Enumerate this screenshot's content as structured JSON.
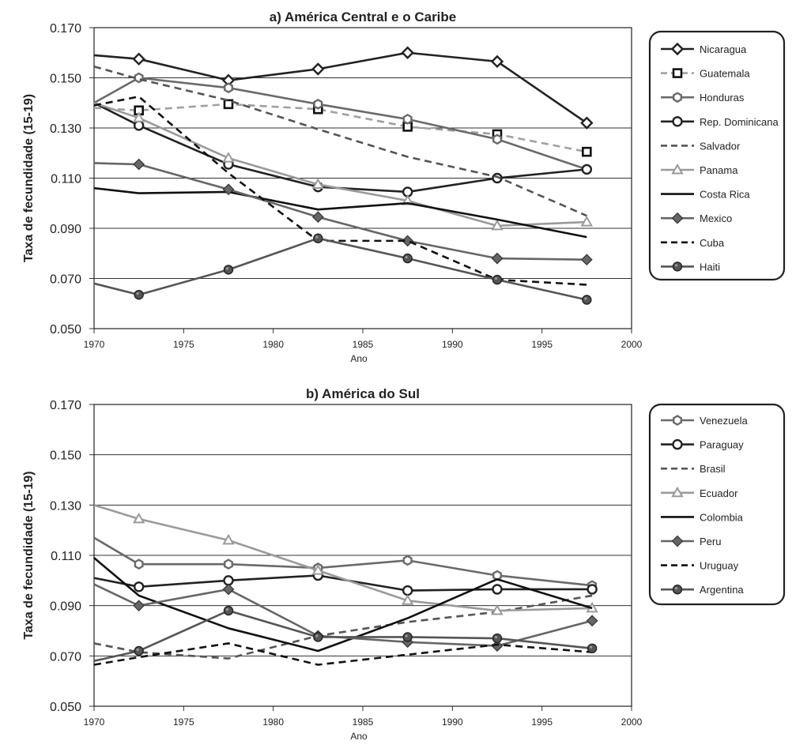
{
  "chart_data": [
    {
      "type": "line",
      "title": "a) América Central e o Caribe",
      "xlabel": "Ano",
      "ylabel": "Taxa de fecundidade (15-19)",
      "xlim": [
        1970,
        2000
      ],
      "ylim": [
        0.05,
        0.17
      ],
      "xticks": [
        "1970",
        "1975",
        "1980",
        "1985",
        "1990",
        "1995",
        "2000"
      ],
      "yticks": [
        "0.050",
        "0.070",
        "0.090",
        "0.110",
        "0.130",
        "0.150",
        "0.170"
      ],
      "grid": "horizontal",
      "legend_position": "right",
      "series": [
        {
          "name": "Nicaragua",
          "color": "#222222",
          "dash": "solid",
          "marker": "diamond-open",
          "x": [
            1970,
            1972.5,
            1977.5,
            1982.5,
            1987.5,
            1992.5,
            1997.5
          ],
          "y": [
            0.159,
            0.1575,
            0.149,
            0.1535,
            0.16,
            0.1565,
            0.132
          ]
        },
        {
          "name": "Guatemala",
          "color": "#a0a0a0",
          "dash": "dash",
          "marker": "square-open",
          "x": [
            1970,
            1972.5,
            1977.5,
            1982.5,
            1987.5,
            1992.5,
            1997.5
          ],
          "y": [
            0.138,
            0.137,
            0.1395,
            0.1375,
            0.1305,
            0.1275,
            0.1205
          ]
        },
        {
          "name": "Honduras",
          "color": "#6a6a6a",
          "dash": "solid",
          "marker": "hexagon-open",
          "x": [
            1970,
            1972.5,
            1977.5,
            1982.5,
            1987.5,
            1992.5,
            1997.5
          ],
          "y": [
            0.14,
            0.15,
            0.146,
            0.1395,
            0.1335,
            0.1255,
            0.1135
          ]
        },
        {
          "name": "Rep. Dominicana",
          "color": "#222222",
          "dash": "solid",
          "marker": "circle-open",
          "x": [
            1970,
            1972.5,
            1977.5,
            1982.5,
            1987.5,
            1992.5,
            1997.5
          ],
          "y": [
            0.14,
            0.131,
            0.1155,
            0.1065,
            0.1045,
            0.11,
            0.1135
          ]
        },
        {
          "name": "Salvador",
          "color": "#555555",
          "dash": "dash",
          "marker": "none",
          "x": [
            1970,
            1972.5,
            1977.5,
            1982.5,
            1987.5,
            1992.5,
            1997.5
          ],
          "y": [
            0.1545,
            0.1495,
            0.141,
            0.1295,
            0.1185,
            0.1105,
            0.095
          ]
        },
        {
          "name": "Panama",
          "color": "#9a9a9a",
          "dash": "solid",
          "marker": "triangle-open",
          "x": [
            1970,
            1972.5,
            1977.5,
            1982.5,
            1987.5,
            1992.5,
            1997.5
          ],
          "y": [
            0.14,
            0.134,
            0.118,
            0.1075,
            0.101,
            0.091,
            0.0925
          ]
        },
        {
          "name": "Costa Rica",
          "color": "#111111",
          "dash": "solid",
          "marker": "none",
          "x": [
            1970,
            1972.5,
            1977.5,
            1982.5,
            1987.5,
            1992.5,
            1997.5
          ],
          "y": [
            0.106,
            0.104,
            0.1045,
            0.0975,
            0.1,
            0.0935,
            0.0865
          ]
        },
        {
          "name": "Mexico",
          "color": "#666666",
          "dash": "solid",
          "marker": "diamond-filled",
          "x": [
            1970,
            1972.5,
            1977.5,
            1982.5,
            1987.5,
            1992.5,
            1997.5
          ],
          "y": [
            0.116,
            0.1155,
            0.1055,
            0.0945,
            0.085,
            0.078,
            0.0775
          ]
        },
        {
          "name": "Cuba",
          "color": "#111111",
          "dash": "dash",
          "marker": "none",
          "x": [
            1970,
            1972.5,
            1977.5,
            1982.5,
            1987.5,
            1992.5,
            1997.5
          ],
          "y": [
            0.139,
            0.1425,
            0.112,
            0.085,
            0.085,
            0.0695,
            0.0675
          ]
        },
        {
          "name": "Haiti",
          "color": "#555555",
          "dash": "solid",
          "marker": "circle-filled",
          "x": [
            1970,
            1972.5,
            1977.5,
            1982.5,
            1987.5,
            1992.5,
            1997.5
          ],
          "y": [
            0.068,
            0.0635,
            0.0735,
            0.086,
            0.078,
            0.0695,
            0.0615
          ]
        }
      ]
    },
    {
      "type": "line",
      "title": "b) América do Sul",
      "xlabel": "Ano",
      "ylabel": "Taxa de fecundidade (15-19)",
      "xlim": [
        1970,
        2000
      ],
      "ylim": [
        0.05,
        0.17
      ],
      "xticks": [
        "1970",
        "1975",
        "1980",
        "1985",
        "1990",
        "1995",
        "2000"
      ],
      "yticks": [
        "0.050",
        "0.070",
        "0.090",
        "0.110",
        "0.130",
        "0.150",
        "0.170"
      ],
      "grid": "horizontal",
      "legend_position": "right",
      "series": [
        {
          "name": "Venezuela",
          "color": "#6a6a6a",
          "dash": "solid",
          "marker": "hexagon-open",
          "x": [
            1970,
            1972.5,
            1977.5,
            1982.5,
            1987.5,
            1992.5,
            1997.8
          ],
          "y": [
            0.117,
            0.1065,
            0.1065,
            0.105,
            0.108,
            0.102,
            0.098
          ]
        },
        {
          "name": "Paraguay",
          "color": "#222222",
          "dash": "solid",
          "marker": "circle-open",
          "x": [
            1970,
            1972.5,
            1977.5,
            1982.5,
            1987.5,
            1992.5,
            1997.8
          ],
          "y": [
            0.101,
            0.0975,
            0.1,
            0.102,
            0.096,
            0.0965,
            0.0965
          ]
        },
        {
          "name": "Brasil",
          "color": "#555555",
          "dash": "dash",
          "marker": "none",
          "x": [
            1970,
            1972.5,
            1977.5,
            1982.5,
            1987.5,
            1992.5,
            1997.8
          ],
          "y": [
            0.075,
            0.0715,
            0.069,
            0.078,
            0.0835,
            0.0875,
            0.094
          ]
        },
        {
          "name": "Ecuador",
          "color": "#9a9a9a",
          "dash": "solid",
          "marker": "triangle-open",
          "x": [
            1970,
            1972.5,
            1977.5,
            1982.5,
            1987.5,
            1992.5,
            1997.8
          ],
          "y": [
            0.13,
            0.1245,
            0.116,
            0.104,
            0.092,
            0.088,
            0.089
          ]
        },
        {
          "name": "Colombia",
          "color": "#111111",
          "dash": "solid",
          "marker": "none",
          "x": [
            1970,
            1972.5,
            1977.5,
            1982.5,
            1987.5,
            1992.5,
            1997.8
          ],
          "y": [
            0.109,
            0.094,
            0.081,
            0.072,
            0.085,
            0.1005,
            0.089
          ]
        },
        {
          "name": "Peru",
          "color": "#666666",
          "dash": "solid",
          "marker": "diamond-filled",
          "x": [
            1970,
            1972.5,
            1977.5,
            1982.5,
            1987.5,
            1992.5,
            1997.8
          ],
          "y": [
            0.0985,
            0.09,
            0.0965,
            0.078,
            0.0755,
            0.074,
            0.084
          ]
        },
        {
          "name": "Uruguay",
          "color": "#111111",
          "dash": "dash",
          "marker": "none",
          "x": [
            1970,
            1972.5,
            1977.5,
            1982.5,
            1987.5,
            1992.5,
            1997.8
          ],
          "y": [
            0.0665,
            0.0695,
            0.075,
            0.0665,
            0.0705,
            0.0745,
            0.0715
          ]
        },
        {
          "name": "Argentina",
          "color": "#555555",
          "dash": "solid",
          "marker": "circle-filled",
          "x": [
            1970,
            1972.5,
            1977.5,
            1982.5,
            1987.5,
            1992.5,
            1997.8
          ],
          "y": [
            0.068,
            0.072,
            0.088,
            0.0775,
            0.0775,
            0.077,
            0.073
          ]
        }
      ]
    }
  ]
}
